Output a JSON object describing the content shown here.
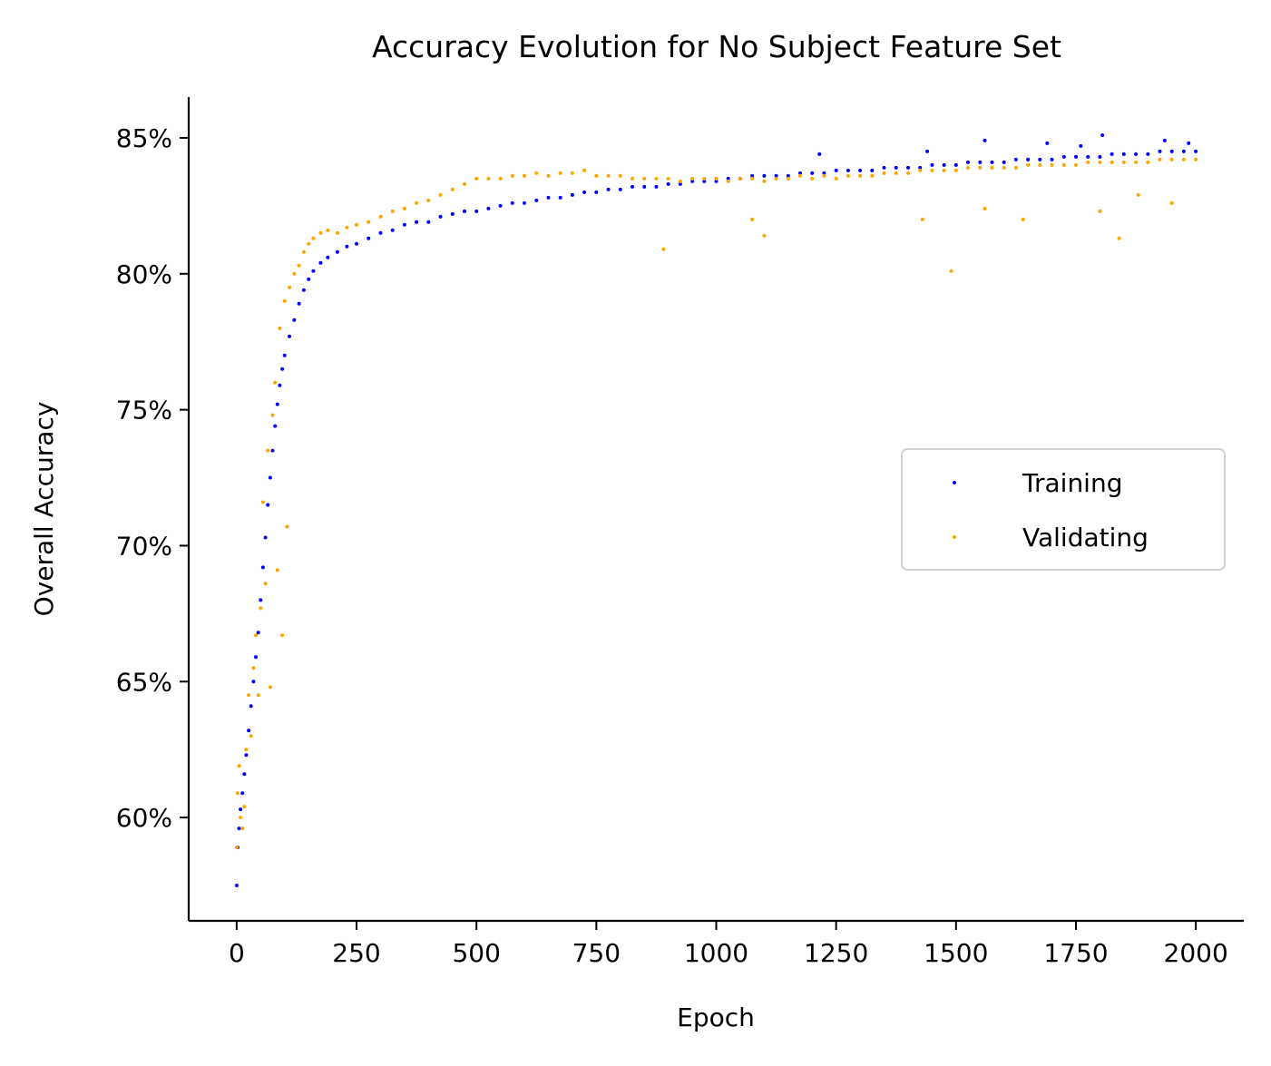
{
  "chart_data": {
    "type": "scatter",
    "title": "Accuracy Evolution for No Subject Feature Set",
    "xlabel": "Epoch",
    "ylabel": "Overall Accuracy",
    "xlim": [
      -100,
      2100
    ],
    "ylim": [
      56.2,
      86.5
    ],
    "x_ticks": [
      0,
      250,
      500,
      750,
      1000,
      1250,
      1500,
      1750,
      2000
    ],
    "x_tick_labels": [
      "0",
      "250",
      "500",
      "750",
      "1000",
      "1250",
      "1500",
      "1750",
      "2000"
    ],
    "y_ticks": [
      60,
      65,
      70,
      75,
      80,
      85
    ],
    "y_tick_labels": [
      "60%",
      "65%",
      "70%",
      "75%",
      "80%",
      "85%"
    ],
    "grid": false,
    "legend_position": "center-right",
    "marker_size": 2,
    "series": [
      {
        "name": "Training",
        "color": "#0000ff",
        "points": [
          [
            0,
            57.5
          ],
          [
            2,
            58.9
          ],
          [
            5,
            59.6
          ],
          [
            8,
            60.3
          ],
          [
            12,
            60.9
          ],
          [
            16,
            61.6
          ],
          [
            20,
            62.3
          ],
          [
            25,
            63.2
          ],
          [
            30,
            64.1
          ],
          [
            35,
            65.0
          ],
          [
            40,
            65.9
          ],
          [
            45,
            66.8
          ],
          [
            50,
            68.0
          ],
          [
            55,
            69.2
          ],
          [
            60,
            70.3
          ],
          [
            65,
            71.5
          ],
          [
            70,
            72.5
          ],
          [
            75,
            73.5
          ],
          [
            80,
            74.4
          ],
          [
            85,
            75.2
          ],
          [
            90,
            75.9
          ],
          [
            95,
            76.5
          ],
          [
            100,
            77.0
          ],
          [
            110,
            77.7
          ],
          [
            120,
            78.3
          ],
          [
            130,
            78.9
          ],
          [
            140,
            79.4
          ],
          [
            150,
            79.8
          ],
          [
            160,
            80.1
          ],
          [
            175,
            80.4
          ],
          [
            190,
            80.6
          ],
          [
            210,
            80.8
          ],
          [
            230,
            81.0
          ],
          [
            250,
            81.1
          ],
          [
            275,
            81.3
          ],
          [
            300,
            81.5
          ],
          [
            325,
            81.6
          ],
          [
            350,
            81.8
          ],
          [
            375,
            81.9
          ],
          [
            400,
            81.9
          ],
          [
            425,
            82.1
          ],
          [
            450,
            82.2
          ],
          [
            475,
            82.3
          ],
          [
            500,
            82.3
          ],
          [
            525,
            82.4
          ],
          [
            550,
            82.5
          ],
          [
            575,
            82.6
          ],
          [
            600,
            82.6
          ],
          [
            625,
            82.7
          ],
          [
            650,
            82.8
          ],
          [
            675,
            82.8
          ],
          [
            700,
            82.9
          ],
          [
            725,
            83.0
          ],
          [
            750,
            83.0
          ],
          [
            775,
            83.1
          ],
          [
            800,
            83.1
          ],
          [
            825,
            83.2
          ],
          [
            850,
            83.2
          ],
          [
            875,
            83.2
          ],
          [
            900,
            83.3
          ],
          [
            925,
            83.3
          ],
          [
            950,
            83.4
          ],
          [
            975,
            83.4
          ],
          [
            1000,
            83.4
          ],
          [
            1025,
            83.5
          ],
          [
            1050,
            83.5
          ],
          [
            1075,
            83.6
          ],
          [
            1100,
            83.6
          ],
          [
            1125,
            83.6
          ],
          [
            1150,
            83.6
          ],
          [
            1175,
            83.7
          ],
          [
            1200,
            83.7
          ],
          [
            1225,
            83.7
          ],
          [
            1250,
            83.8
          ],
          [
            1275,
            83.8
          ],
          [
            1300,
            83.8
          ],
          [
            1325,
            83.8
          ],
          [
            1350,
            83.9
          ],
          [
            1375,
            83.9
          ],
          [
            1400,
            83.9
          ],
          [
            1425,
            83.9
          ],
          [
            1450,
            84.0
          ],
          [
            1475,
            84.0
          ],
          [
            1500,
            84.0
          ],
          [
            1525,
            84.1
          ],
          [
            1550,
            84.1
          ],
          [
            1575,
            84.1
          ],
          [
            1600,
            84.1
          ],
          [
            1625,
            84.2
          ],
          [
            1650,
            84.2
          ],
          [
            1675,
            84.2
          ],
          [
            1700,
            84.2
          ],
          [
            1725,
            84.3
          ],
          [
            1750,
            84.3
          ],
          [
            1775,
            84.3
          ],
          [
            1800,
            84.3
          ],
          [
            1825,
            84.4
          ],
          [
            1850,
            84.4
          ],
          [
            1875,
            84.4
          ],
          [
            1900,
            84.4
          ],
          [
            1925,
            84.5
          ],
          [
            1950,
            84.5
          ],
          [
            1975,
            84.5
          ],
          [
            2000,
            84.5
          ],
          [
            1215,
            84.4
          ],
          [
            1560,
            84.9
          ],
          [
            1690,
            84.8
          ],
          [
            1805,
            85.1
          ],
          [
            1935,
            84.9
          ],
          [
            1985,
            84.8
          ],
          [
            1440,
            84.5
          ],
          [
            1760,
            84.7
          ]
        ]
      },
      {
        "name": "Validating",
        "color": "#ffa500",
        "points": [
          [
            0,
            58.9
          ],
          [
            2,
            60.9
          ],
          [
            5,
            61.9
          ],
          [
            8,
            60.0
          ],
          [
            12,
            59.6
          ],
          [
            16,
            60.4
          ],
          [
            20,
            62.5
          ],
          [
            25,
            64.5
          ],
          [
            30,
            63.0
          ],
          [
            35,
            65.5
          ],
          [
            40,
            66.7
          ],
          [
            45,
            64.5
          ],
          [
            50,
            67.7
          ],
          [
            55,
            71.6
          ],
          [
            60,
            68.6
          ],
          [
            65,
            73.5
          ],
          [
            70,
            64.8
          ],
          [
            75,
            74.8
          ],
          [
            80,
            76.0
          ],
          [
            85,
            69.1
          ],
          [
            90,
            78.0
          ],
          [
            95,
            66.7
          ],
          [
            100,
            79.0
          ],
          [
            105,
            70.7
          ],
          [
            110,
            79.5
          ],
          [
            120,
            80.0
          ],
          [
            130,
            80.3
          ],
          [
            140,
            80.8
          ],
          [
            150,
            81.1
          ],
          [
            160,
            81.3
          ],
          [
            175,
            81.5
          ],
          [
            190,
            81.6
          ],
          [
            210,
            81.5
          ],
          [
            230,
            81.7
          ],
          [
            250,
            81.8
          ],
          [
            275,
            81.9
          ],
          [
            300,
            82.1
          ],
          [
            325,
            82.3
          ],
          [
            350,
            82.4
          ],
          [
            375,
            82.6
          ],
          [
            400,
            82.7
          ],
          [
            425,
            82.9
          ],
          [
            450,
            83.1
          ],
          [
            475,
            83.3
          ],
          [
            500,
            83.5
          ],
          [
            525,
            83.5
          ],
          [
            550,
            83.5
          ],
          [
            575,
            83.6
          ],
          [
            600,
            83.6
          ],
          [
            625,
            83.7
          ],
          [
            650,
            83.6
          ],
          [
            675,
            83.7
          ],
          [
            700,
            83.7
          ],
          [
            725,
            83.8
          ],
          [
            750,
            83.6
          ],
          [
            775,
            83.6
          ],
          [
            800,
            83.6
          ],
          [
            825,
            83.5
          ],
          [
            850,
            83.5
          ],
          [
            875,
            83.5
          ],
          [
            900,
            83.5
          ],
          [
            925,
            83.4
          ],
          [
            950,
            83.5
          ],
          [
            975,
            83.5
          ],
          [
            1000,
            83.5
          ],
          [
            1025,
            83.4
          ],
          [
            1050,
            83.5
          ],
          [
            1075,
            83.5
          ],
          [
            1100,
            83.4
          ],
          [
            1125,
            83.5
          ],
          [
            1150,
            83.5
          ],
          [
            1175,
            83.6
          ],
          [
            1200,
            83.5
          ],
          [
            1225,
            83.6
          ],
          [
            1250,
            83.5
          ],
          [
            1275,
            83.6
          ],
          [
            1300,
            83.6
          ],
          [
            1325,
            83.6
          ],
          [
            1350,
            83.7
          ],
          [
            1375,
            83.7
          ],
          [
            1400,
            83.7
          ],
          [
            1425,
            83.8
          ],
          [
            1450,
            83.8
          ],
          [
            1475,
            83.8
          ],
          [
            1500,
            83.8
          ],
          [
            1525,
            83.9
          ],
          [
            1550,
            83.9
          ],
          [
            1575,
            83.9
          ],
          [
            1600,
            83.9
          ],
          [
            1625,
            83.9
          ],
          [
            1650,
            84.0
          ],
          [
            1675,
            84.0
          ],
          [
            1700,
            84.0
          ],
          [
            1725,
            84.0
          ],
          [
            1750,
            84.0
          ],
          [
            1775,
            84.1
          ],
          [
            1800,
            84.1
          ],
          [
            1825,
            84.1
          ],
          [
            1850,
            84.1
          ],
          [
            1875,
            84.1
          ],
          [
            1900,
            84.1
          ],
          [
            1925,
            84.2
          ],
          [
            1950,
            84.2
          ],
          [
            1975,
            84.2
          ],
          [
            2000,
            84.2
          ],
          [
            890,
            80.9
          ],
          [
            1075,
            82.0
          ],
          [
            1100,
            81.4
          ],
          [
            1430,
            82.0
          ],
          [
            1490,
            80.1
          ],
          [
            1640,
            82.0
          ],
          [
            1800,
            82.3
          ],
          [
            1840,
            81.3
          ],
          [
            1880,
            82.9
          ],
          [
            1950,
            82.6
          ],
          [
            1560,
            82.4
          ]
        ]
      }
    ]
  }
}
